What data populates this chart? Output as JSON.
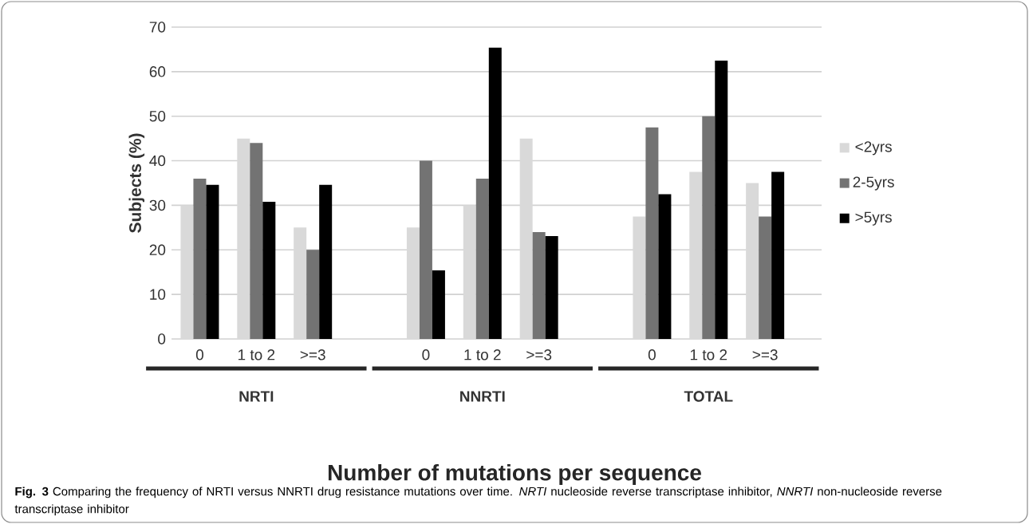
{
  "chart_data": {
    "type": "bar",
    "ylabel": "Subjects (%)",
    "xlabel": "Number of mutations per sequence",
    "categories": [
      "0",
      "1 to 2",
      ">=3",
      null,
      "0",
      "1 to 2",
      ">=3",
      null,
      "0",
      "1 to 2",
      ">=3"
    ],
    "series": [
      {
        "name": "<2yrs",
        "color": "#d9d9d9",
        "values": [
          30,
          45,
          25,
          null,
          25,
          30,
          45,
          null,
          27.5,
          37.5,
          35
        ]
      },
      {
        "name": "2-5yrs",
        "color": "#737373",
        "values": [
          36,
          44,
          20,
          null,
          40,
          36,
          24,
          null,
          47.5,
          50,
          27.5
        ]
      },
      {
        "name": ">5yrs",
        "color": "#000000",
        "values": [
          34.6,
          30.8,
          34.6,
          null,
          15.4,
          65.4,
          23.1,
          null,
          32.5,
          62.5,
          37.5
        ]
      }
    ],
    "ylim": [
      0,
      70
    ],
    "yticks": [
      0,
      10,
      20,
      30,
      40,
      50,
      60,
      70
    ],
    "grid": "y",
    "legend": "right",
    "annotations": [
      "NRTI",
      "NNRTI",
      "TOTAL",
      "**Fig. 3** Comparing the frequency of NRTI versus NNRTI drug resistance mutations over time. *NRTI* nucleoside reverse transcriptase inhibitor, *NNRTI* non-nucleoside reverse transcriptase inhibitor"
    ]
  }
}
